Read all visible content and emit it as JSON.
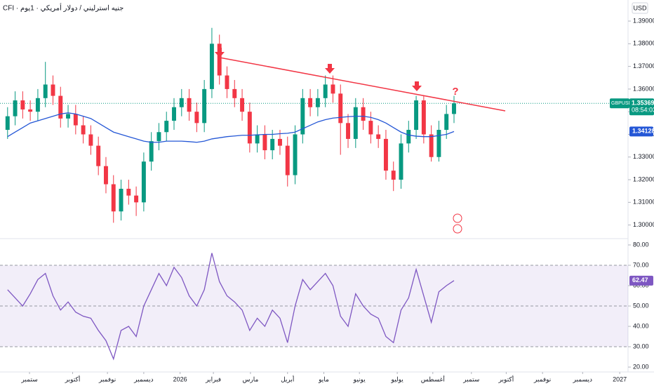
{
  "header": "CFI · جنيه استرليني / دولار أمريكي · 1يوم",
  "currency": "USD",
  "symbol": "GBPUSD",
  "countdown": "08:54:03",
  "annotation": "?",
  "chart_data": [
    {
      "type": "candlestick",
      "up_color": "#089981",
      "down_color": "#f23645",
      "x": [
        1,
        2,
        3,
        4,
        5,
        6,
        7,
        8,
        9,
        10,
        11,
        12,
        13,
        14,
        15,
        16,
        17,
        18,
        19,
        20,
        21,
        22,
        23,
        24,
        25,
        26,
        27,
        28,
        29,
        30,
        31,
        32,
        33,
        34,
        35,
        36,
        37,
        38,
        39,
        40,
        41,
        42,
        43,
        44,
        45,
        46,
        47,
        48,
        49,
        50,
        51,
        52,
        53,
        54,
        55,
        56,
        57,
        58,
        59,
        60
      ],
      "open": [
        1.342,
        1.348,
        1.355,
        1.351,
        1.35,
        1.356,
        1.362,
        1.357,
        1.347,
        1.349,
        1.344,
        1.34,
        1.335,
        1.326,
        1.318,
        1.306,
        1.316,
        1.313,
        1.31,
        1.328,
        1.337,
        1.341,
        1.346,
        1.352,
        1.356,
        1.35,
        1.345,
        1.36,
        1.38,
        1.366,
        1.36,
        1.356,
        1.35,
        1.336,
        1.34,
        1.333,
        1.338,
        1.335,
        1.322,
        1.34,
        1.356,
        1.352,
        1.356,
        1.362,
        1.358,
        1.345,
        1.338,
        1.352,
        1.346,
        1.34,
        1.338,
        1.324,
        1.32,
        1.336,
        1.342,
        1.355,
        1.34,
        1.33,
        1.342,
        1.349
      ],
      "high": [
        1.352,
        1.359,
        1.359,
        1.355,
        1.36,
        1.372,
        1.366,
        1.361,
        1.353,
        1.353,
        1.348,
        1.344,
        1.339,
        1.33,
        1.322,
        1.32,
        1.32,
        1.317,
        1.332,
        1.341,
        1.345,
        1.35,
        1.356,
        1.36,
        1.36,
        1.354,
        1.364,
        1.387,
        1.384,
        1.37,
        1.364,
        1.36,
        1.354,
        1.344,
        1.344,
        1.342,
        1.342,
        1.339,
        1.344,
        1.36,
        1.36,
        1.36,
        1.366,
        1.366,
        1.362,
        1.349,
        1.356,
        1.356,
        1.35,
        1.344,
        1.342,
        1.328,
        1.34,
        1.346,
        1.357,
        1.357,
        1.344,
        1.346,
        1.353,
        1.357
      ],
      "low": [
        1.338,
        1.344,
        1.347,
        1.346,
        1.346,
        1.352,
        1.353,
        1.343,
        1.343,
        1.34,
        1.336,
        1.331,
        1.322,
        1.314,
        1.301,
        1.302,
        1.309,
        1.304,
        1.306,
        1.324,
        1.333,
        1.337,
        1.342,
        1.348,
        1.346,
        1.341,
        1.341,
        1.356,
        1.362,
        1.356,
        1.352,
        1.346,
        1.332,
        1.332,
        1.329,
        1.329,
        1.331,
        1.317,
        1.318,
        1.336,
        1.348,
        1.348,
        1.352,
        1.354,
        1.331,
        1.334,
        1.334,
        1.342,
        1.336,
        1.334,
        1.32,
        1.315,
        1.316,
        1.332,
        1.338,
        1.336,
        1.328,
        1.328,
        1.338,
        1.345
      ],
      "close": [
        1.348,
        1.355,
        1.351,
        1.35,
        1.356,
        1.362,
        1.357,
        1.347,
        1.349,
        1.344,
        1.34,
        1.335,
        1.326,
        1.318,
        1.306,
        1.316,
        1.313,
        1.31,
        1.328,
        1.337,
        1.341,
        1.346,
        1.352,
        1.356,
        1.35,
        1.345,
        1.36,
        1.38,
        1.366,
        1.36,
        1.356,
        1.35,
        1.336,
        1.34,
        1.333,
        1.338,
        1.335,
        1.322,
        1.34,
        1.356,
        1.352,
        1.356,
        1.362,
        1.358,
        1.345,
        1.338,
        1.352,
        1.346,
        1.34,
        1.338,
        1.324,
        1.32,
        1.336,
        1.342,
        1.355,
        1.34,
        1.33,
        1.342,
        1.349,
        1.35369
      ],
      "series": [
        {
          "color": "#2457d6",
          "values": [
            1.339,
            1.341,
            1.343,
            1.345,
            1.346,
            1.347,
            1.348,
            1.349,
            1.3495,
            1.349,
            1.348,
            1.347,
            1.345,
            1.343,
            1.341,
            1.34,
            1.339,
            1.338,
            1.337,
            1.3365,
            1.3365,
            1.337,
            1.337,
            1.337,
            1.3368,
            1.3365,
            1.337,
            1.338,
            1.3385,
            1.339,
            1.3393,
            1.3396,
            1.3396,
            1.3398,
            1.34,
            1.34,
            1.3403,
            1.3405,
            1.341,
            1.3425,
            1.344,
            1.3455,
            1.3465,
            1.3472,
            1.3475,
            1.3478,
            1.348,
            1.348,
            1.3475,
            1.3465,
            1.345,
            1.343,
            1.341,
            1.3397,
            1.3392,
            1.339,
            1.339,
            1.3395,
            1.34,
            1.34128
          ]
        }
      ],
      "xlim": [
        0,
        83
      ],
      "ylim": [
        1.294,
        1.3993
      ],
      "yticks": [
        {
          "value": 1.3,
          "label": "1.30000"
        },
        {
          "value": 1.31,
          "label": "1.31000"
        },
        {
          "value": 1.32,
          "label": "1.32000"
        },
        {
          "value": 1.33,
          "label": "1.33000"
        },
        {
          "value": 1.34,
          "label": "1.34000"
        },
        {
          "value": 1.35,
          "label": "1.35000"
        },
        {
          "value": 1.36,
          "label": "1.36000"
        },
        {
          "value": 1.37,
          "label": "1.37000"
        },
        {
          "value": 1.38,
          "label": "1.38000"
        },
        {
          "value": 1.39,
          "label": "1.39000"
        }
      ],
      "grid": false
    },
    {
      "type": "line",
      "x": [
        1,
        2,
        3,
        4,
        5,
        6,
        7,
        8,
        9,
        10,
        11,
        12,
        13,
        14,
        15,
        16,
        17,
        18,
        19,
        20,
        21,
        22,
        23,
        24,
        25,
        26,
        27,
        28,
        29,
        30,
        31,
        32,
        33,
        34,
        35,
        36,
        37,
        38,
        39,
        40,
        41,
        42,
        43,
        44,
        45,
        46,
        47,
        48,
        49,
        50,
        51,
        52,
        53,
        54,
        55,
        56,
        57,
        58,
        59,
        60
      ],
      "series": [
        {
          "color": "#7e57c2",
          "values": [
            58,
            54,
            50,
            56,
            63,
            66,
            55,
            48,
            52,
            47,
            45,
            44,
            38,
            33,
            24,
            38,
            40,
            35,
            50,
            58,
            66,
            60,
            69,
            64,
            55,
            50,
            58,
            76,
            62,
            55,
            52,
            48,
            38,
            44,
            40,
            48,
            44,
            32,
            50,
            63,
            58,
            62,
            66,
            60,
            45,
            40,
            56,
            50,
            46,
            44,
            35,
            32,
            48,
            54,
            68,
            55,
            42,
            57,
            60,
            62.47
          ]
        }
      ],
      "levels": [
        70,
        50,
        30
      ],
      "xlim": [
        0,
        83
      ],
      "ylim": [
        17.6,
        83.1
      ],
      "yticks": [
        {
          "value": 20,
          "label": "20.00"
        },
        {
          "value": 30,
          "label": "30.00"
        },
        {
          "value": 40,
          "label": "40.00"
        },
        {
          "value": 50,
          "label": "50.00"
        },
        {
          "value": 60,
          "label": "60.00"
        },
        {
          "value": 70,
          "label": "70.00"
        },
        {
          "value": 80,
          "label": "80.00"
        }
      ],
      "xticks": [
        {
          "value": 3.9,
          "label": "ستمبر"
        },
        {
          "value": 9.6,
          "label": "أكتوبر"
        },
        {
          "value": 14.2,
          "label": "نوفمبر"
        },
        {
          "value": 19.0,
          "label": "ديسمبر"
        },
        {
          "value": 23.8,
          "label": "2026"
        },
        {
          "value": 28.2,
          "label": "فبراير"
        },
        {
          "value": 33.1,
          "label": "مارس"
        },
        {
          "value": 38.0,
          "label": "أبريل"
        },
        {
          "value": 42.8,
          "label": "مايو"
        },
        {
          "value": 47.5,
          "label": "يونيو"
        },
        {
          "value": 52.5,
          "label": "يوليو"
        },
        {
          "value": 57.2,
          "label": "أغسطس"
        },
        {
          "value": 62.3,
          "label": "ستمبر"
        },
        {
          "value": 66.9,
          "label": "أكتوبر"
        },
        {
          "value": 71.7,
          "label": "نوفمبر"
        },
        {
          "value": 77.0,
          "label": "ديسمبر"
        },
        {
          "value": 81.9,
          "label": "2027"
        }
      ],
      "grid": false
    }
  ]
}
